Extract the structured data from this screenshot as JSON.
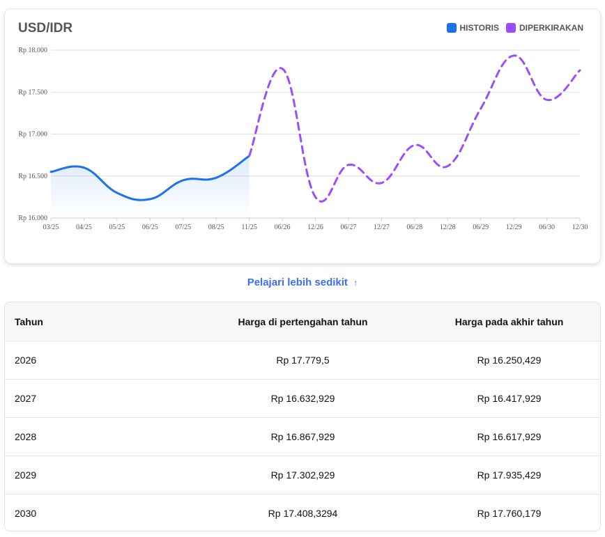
{
  "chart_data": {
    "type": "line",
    "title": "USD/IDR",
    "legend": [
      "HISTORIS",
      "DIPERKIRAKAN"
    ],
    "legend_position": "top-right",
    "categories": [
      "03/25",
      "04/25",
      "05/25",
      "06/25",
      "07/25",
      "08/25",
      "11/25",
      "06/26",
      "12/26",
      "06/27",
      "12/27",
      "06/28",
      "12/28",
      "06/29",
      "12/29",
      "06/30",
      "12/30"
    ],
    "y_ticks": [
      "Rp 16.000",
      "Rp 16.500",
      "Rp 17.000",
      "Rp 17.500",
      "Rp 18.000"
    ],
    "ylim": [
      16000,
      18000
    ],
    "series": [
      {
        "name": "HISTORIS",
        "color": "#1a73e8",
        "values": [
          16550,
          16600,
          16300,
          16225,
          16450,
          16480,
          16740,
          null,
          null,
          null,
          null,
          null,
          null,
          null,
          null,
          null,
          null
        ]
      },
      {
        "name": "DIPERKIRAKAN",
        "color": "#9b4dff",
        "values": [
          null,
          null,
          null,
          null,
          null,
          null,
          16740,
          17779.5,
          16250,
          16633,
          16418,
          16868,
          16618,
          17303,
          17935,
          17408,
          17760
        ]
      }
    ]
  },
  "learn_link": "Pelajari lebih sedikit",
  "learn_arrow": "↑",
  "table": {
    "headers": [
      "Tahun",
      "Harga di pertengahan tahun",
      "Harga pada akhir tahun"
    ],
    "rows": [
      [
        "2026",
        "Rp 17.779,5",
        "Rp 16.250,429"
      ],
      [
        "2027",
        "Rp 16.632,929",
        "Rp 16.417,929"
      ],
      [
        "2028",
        "Rp 16.867,929",
        "Rp 16.617,929"
      ],
      [
        "2029",
        "Rp 17.302,929",
        "Rp 17.935,429"
      ],
      [
        "2030",
        "Rp 17.408,3294",
        "Rp 17.760,179"
      ]
    ]
  }
}
